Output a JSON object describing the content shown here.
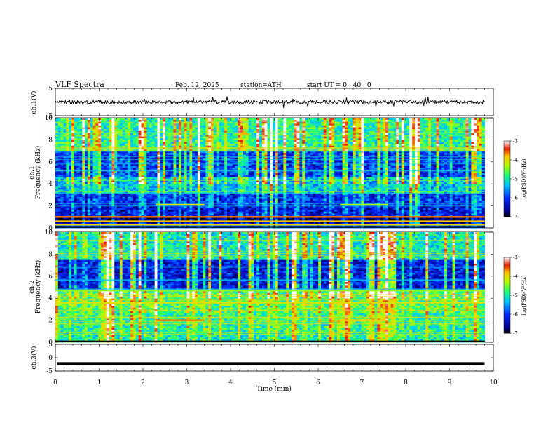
{
  "header": {
    "title": "VLF  Spectra",
    "date": "Feb. 12, 2025",
    "station": "station=ATH",
    "start": "start  UT  =   0 : 40 : 0"
  },
  "chart_data": [
    {
      "type": "line",
      "name": "ch1-waveform",
      "ylabel": "ch.1(V)",
      "xlim": [
        0,
        10
      ],
      "ylim": [
        -5,
        5
      ],
      "yticks": [
        "5",
        "-5"
      ],
      "approx_level": 0,
      "approx_amplitude": 1.0,
      "data_end": 9.8
    },
    {
      "type": "heatmap",
      "name": "ch1-spectrogram",
      "ylabel": "ch.1\nFrequency  (kHz)",
      "xlim": [
        0,
        10
      ],
      "ylim": [
        0,
        10
      ],
      "yticks": [
        "0",
        "2",
        "4",
        "6",
        "8",
        "10"
      ],
      "data_end": 9.8,
      "colorbar": {
        "label": "log(PSD)(V²/Hz)",
        "ticks": [
          "-3",
          "-4",
          "-5",
          "-6",
          "-7"
        ],
        "range": [
          -7,
          -3
        ]
      },
      "bands": [
        {
          "f_lo": 0.0,
          "f_hi": 0.5,
          "level": -6.4
        },
        {
          "f_lo": 0.5,
          "f_hi": 1.0,
          "level": -6.8
        },
        {
          "f_lo": 1.0,
          "f_hi": 2.0,
          "level": -6.3
        },
        {
          "f_lo": 2.0,
          "f_hi": 3.2,
          "level": -6.1
        },
        {
          "f_lo": 3.2,
          "f_hi": 4.6,
          "level": -5.3
        },
        {
          "f_lo": 4.6,
          "f_hi": 7.0,
          "level": -6.0
        },
        {
          "f_lo": 7.0,
          "f_hi": 10.0,
          "level": -4.9
        }
      ],
      "lines_khz": [
        {
          "f": 2.1,
          "level": -4.0,
          "t0": 2.3,
          "t1": 3.4
        },
        {
          "f": 2.1,
          "level": -4.3,
          "t0": 6.5,
          "t1": 7.6
        },
        {
          "f": 1.0,
          "level": -3.6,
          "t0": 0,
          "t1": 9.8
        },
        {
          "f": 0.6,
          "level": -3.8,
          "t0": 0,
          "t1": 9.8
        },
        {
          "f": 0.3,
          "level": -3.9,
          "t0": 0,
          "t1": 9.8
        }
      ]
    },
    {
      "type": "heatmap",
      "name": "ch2-spectrogram",
      "ylabel": "ch.2\nFrequency  (kHz)",
      "xlim": [
        0,
        10
      ],
      "ylim": [
        0,
        10
      ],
      "yticks": [
        "0",
        "2",
        "4",
        "6",
        "8",
        "10"
      ],
      "data_end": 9.8,
      "colorbar": {
        "label": "log(PSD)(V²/Hz)",
        "ticks": [
          "-3",
          "-4",
          "-5",
          "-6",
          "-7"
        ],
        "range": [
          -7,
          -3
        ]
      },
      "bands": [
        {
          "f_lo": 0.0,
          "f_hi": 1.0,
          "level": -5.0
        },
        {
          "f_lo": 1.0,
          "f_hi": 2.6,
          "level": -4.9
        },
        {
          "f_lo": 2.6,
          "f_hi": 4.8,
          "level": -4.7
        },
        {
          "f_lo": 4.8,
          "f_hi": 7.5,
          "level": -6.2
        },
        {
          "f_lo": 7.5,
          "f_hi": 10.0,
          "level": -5.0
        }
      ],
      "lines_khz": [
        {
          "f": 2.0,
          "level": -3.6,
          "t0": 2.3,
          "t1": 3.4
        },
        {
          "f": 2.0,
          "level": -3.8,
          "t0": 6.5,
          "t1": 7.6
        },
        {
          "f": 3.6,
          "level": -4.0,
          "t0": 0,
          "t1": 9.8
        },
        {
          "f": 4.7,
          "level": -4.4,
          "t0": 0,
          "t1": 9.8
        }
      ]
    },
    {
      "type": "line",
      "name": "ch3-waveform",
      "ylabel": "ch.3(V)",
      "xlabel": "Time  (min)",
      "xlim": [
        0,
        10
      ],
      "ylim": [
        -5,
        5
      ],
      "yticks": [
        "5",
        "0",
        "-5"
      ],
      "xticks": [
        "0",
        "1",
        "2",
        "3",
        "4",
        "5",
        "6",
        "7",
        "8",
        "9",
        "10"
      ],
      "approx_level": -2.2,
      "data_end": 9.8
    }
  ]
}
